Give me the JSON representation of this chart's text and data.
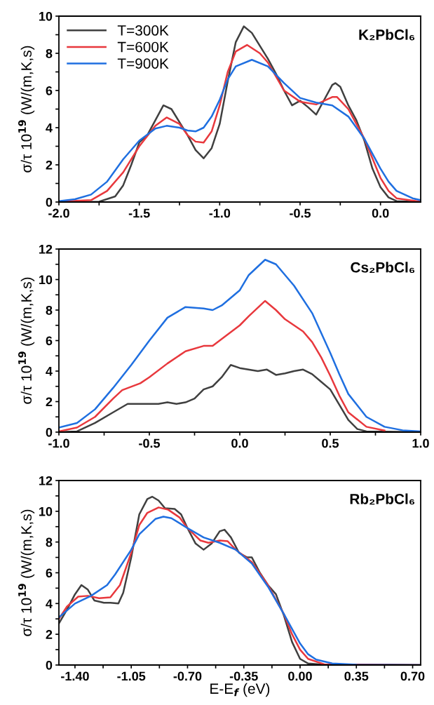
{
  "chart_data": [
    {
      "type": "line",
      "ylabel": "σ/τ 10$^{19}$ (W/(m,K,s)",
      "annotations": [
        "K₂PbCl₆"
      ],
      "legend": "top left",
      "xlim": [
        -2.0,
        0.25
      ],
      "xticks": [
        {
          "value": -2.0,
          "label": "-2.0"
        },
        {
          "value": -1.75,
          "label": null
        },
        {
          "value": -1.5,
          "label": "-1.5"
        },
        {
          "value": -1.25,
          "label": null
        },
        {
          "value": -1.0,
          "label": "-1.0"
        },
        {
          "value": -0.75,
          "label": null
        },
        {
          "value": -0.5,
          "label": "-0.5"
        },
        {
          "value": -0.25,
          "label": null
        },
        {
          "value": 0.0,
          "label": "0.0"
        }
      ],
      "ylim": [
        0,
        10
      ],
      "yticks": [
        0,
        {
          "value": 1,
          "label": null
        },
        2,
        {
          "value": 3,
          "label": null
        },
        4,
        {
          "value": 5,
          "label": null
        },
        6,
        {
          "value": 7,
          "label": null
        },
        8,
        {
          "value": 9,
          "label": null
        },
        10
      ],
      "series": [
        {
          "name": "T=300K",
          "color": "#404040",
          "x": [
            -2.0,
            -1.75,
            -1.65,
            -1.6,
            -1.55,
            -1.5,
            -1.45,
            -1.4,
            -1.35,
            -1.3,
            -1.25,
            -1.2,
            -1.15,
            -1.1,
            -1.05,
            -1.0,
            -0.95,
            -0.9,
            -0.85,
            -0.8,
            -0.75,
            -0.7,
            -0.65,
            -0.6,
            -0.55,
            -0.5,
            -0.45,
            -0.4,
            -0.35,
            -0.3,
            -0.28,
            -0.25,
            -0.2,
            -0.15,
            -0.1,
            -0.05,
            0.0,
            0.05,
            0.1,
            0.25
          ],
          "values": [
            0,
            0.02,
            0.3,
            0.9,
            2.0,
            3.2,
            3.6,
            4.4,
            5.2,
            5.0,
            4.3,
            3.6,
            2.8,
            2.35,
            2.9,
            4.2,
            6.5,
            8.6,
            9.45,
            9.1,
            8.4,
            7.7,
            6.9,
            6.0,
            5.2,
            5.45,
            5.1,
            4.7,
            5.5,
            6.3,
            6.4,
            6.2,
            5.2,
            4.4,
            3.3,
            1.8,
            0.8,
            0.25,
            0.05,
            0.0
          ]
        },
        {
          "name": "T=600K",
          "color": "#e8383d",
          "x": [
            -2.0,
            -1.8,
            -1.7,
            -1.6,
            -1.5,
            -1.4,
            -1.33,
            -1.25,
            -1.2,
            -1.15,
            -1.1,
            -1.05,
            -1.0,
            -0.95,
            -0.9,
            -0.83,
            -0.75,
            -0.7,
            -0.6,
            -0.5,
            -0.4,
            -0.3,
            -0.27,
            -0.2,
            -0.1,
            0.0,
            0.05,
            0.1,
            0.25
          ],
          "values": [
            0.02,
            0.1,
            0.6,
            1.6,
            3.0,
            4.1,
            4.55,
            4.2,
            3.6,
            3.25,
            3.2,
            3.8,
            5.2,
            7.0,
            8.1,
            8.45,
            8.0,
            7.5,
            6.0,
            5.4,
            5.25,
            5.65,
            5.65,
            5.0,
            3.4,
            1.3,
            0.6,
            0.2,
            0.02
          ]
        },
        {
          "name": "T=900K",
          "color": "#1f6fe0",
          "x": [
            -2.0,
            -1.9,
            -1.8,
            -1.7,
            -1.6,
            -1.5,
            -1.4,
            -1.33,
            -1.25,
            -1.2,
            -1.15,
            -1.1,
            -1.05,
            -1.0,
            -0.95,
            -0.9,
            -0.8,
            -0.7,
            -0.6,
            -0.5,
            -0.4,
            -0.3,
            -0.2,
            -0.1,
            0.0,
            0.05,
            0.1,
            0.2,
            0.25
          ],
          "values": [
            0.05,
            0.15,
            0.4,
            1.1,
            2.3,
            3.3,
            3.95,
            4.1,
            4.0,
            3.85,
            3.8,
            4.0,
            4.6,
            5.5,
            6.6,
            7.3,
            7.65,
            7.3,
            6.4,
            5.6,
            5.35,
            5.2,
            4.6,
            3.4,
            1.8,
            1.1,
            0.6,
            0.2,
            0.1
          ]
        }
      ]
    },
    {
      "type": "line",
      "ylabel": "σ/τ 10$^{19}$ (W/(m,K,s)",
      "annotations": [
        "Cs₂PbCl₆"
      ],
      "xlim": [
        -1.0,
        1.0
      ],
      "xticks": [
        {
          "value": -1.0,
          "label": "-1.0"
        },
        {
          "value": -0.75,
          "label": null
        },
        {
          "value": -0.5,
          "label": "-0.5"
        },
        {
          "value": -0.25,
          "label": null
        },
        {
          "value": 0.0,
          "label": "0.0"
        },
        {
          "value": 0.25,
          "label": null
        },
        {
          "value": 0.5,
          "label": "0.5"
        },
        {
          "value": 0.75,
          "label": null
        },
        {
          "value": 1.0,
          "label": "1.0"
        }
      ],
      "ylim": [
        0,
        12
      ],
      "yticks": [
        0,
        {
          "value": 1,
          "label": null
        },
        2,
        {
          "value": 3,
          "label": null
        },
        4,
        {
          "value": 5,
          "label": null
        },
        6,
        {
          "value": 7,
          "label": null
        },
        8,
        {
          "value": 9,
          "label": null
        },
        10,
        {
          "value": 11,
          "label": null
        },
        12
      ],
      "series": [
        {
          "color": "#404040",
          "x": [
            -1.0,
            -0.9,
            -0.8,
            -0.7,
            -0.62,
            -0.55,
            -0.45,
            -0.4,
            -0.35,
            -0.3,
            -0.25,
            -0.2,
            -0.15,
            -0.1,
            -0.05,
            0.0,
            0.1,
            0.15,
            0.2,
            0.25,
            0.3,
            0.35,
            0.4,
            0.45,
            0.5,
            0.55,
            0.6,
            0.65,
            0.7,
            1.0
          ],
          "values": [
            0,
            0.05,
            0.6,
            1.3,
            1.85,
            1.85,
            1.85,
            1.95,
            1.85,
            1.95,
            2.2,
            2.8,
            3.0,
            3.6,
            4.4,
            4.2,
            4.0,
            4.1,
            3.75,
            3.85,
            4.0,
            4.1,
            3.8,
            3.3,
            2.8,
            1.8,
            0.8,
            0.2,
            0.05,
            0
          ]
        },
        {
          "color": "#e8383d",
          "x": [
            -1.0,
            -0.9,
            -0.8,
            -0.7,
            -0.65,
            -0.55,
            -0.5,
            -0.4,
            -0.3,
            -0.2,
            -0.15,
            -0.1,
            0.0,
            0.05,
            0.14,
            0.2,
            0.25,
            0.35,
            0.4,
            0.45,
            0.5,
            0.55,
            0.6,
            0.7,
            0.8
          ],
          "values": [
            0.05,
            0.3,
            1.0,
            2.2,
            2.75,
            3.2,
            3.6,
            4.5,
            5.3,
            5.65,
            5.65,
            6.1,
            7.0,
            7.6,
            8.6,
            8.0,
            7.4,
            6.6,
            5.9,
            4.9,
            3.7,
            2.4,
            1.3,
            0.35,
            0.1
          ]
        },
        {
          "color": "#1f6fe0",
          "x": [
            -1.0,
            -0.9,
            -0.8,
            -0.7,
            -0.6,
            -0.5,
            -0.4,
            -0.3,
            -0.2,
            -0.15,
            -0.1,
            0.0,
            0.05,
            0.14,
            0.2,
            0.3,
            0.4,
            0.5,
            0.55,
            0.6,
            0.7,
            0.8,
            0.9,
            1.0
          ],
          "values": [
            0.3,
            0.6,
            1.5,
            2.9,
            4.4,
            6.0,
            7.5,
            8.2,
            8.1,
            8.0,
            8.3,
            9.3,
            10.3,
            11.3,
            11.0,
            9.6,
            7.8,
            5.2,
            3.8,
            2.5,
            1.0,
            0.35,
            0.12,
            0.05
          ]
        }
      ]
    },
    {
      "type": "line",
      "xlabel": "E-E$_{f}$ (eV)",
      "ylabel": "σ/τ 10$^{19}$ (W/(m,K,s)",
      "annotations": [
        "Rb₂PbCl₆"
      ],
      "xlim": [
        -1.5,
        0.75
      ],
      "xticks": [
        {
          "value": -1.4,
          "label": "-1.40"
        },
        {
          "value": -1.225,
          "label": null
        },
        {
          "value": -1.05,
          "label": "-1.05"
        },
        {
          "value": -0.875,
          "label": null
        },
        {
          "value": -0.7,
          "label": "-0.70"
        },
        {
          "value": -0.525,
          "label": null
        },
        {
          "value": -0.35,
          "label": "-0.35"
        },
        {
          "value": -0.175,
          "label": null
        },
        {
          "value": 0.0,
          "label": "0.00"
        },
        {
          "value": 0.175,
          "label": null
        },
        {
          "value": 0.35,
          "label": "0.35"
        },
        {
          "value": 0.525,
          "label": null
        },
        {
          "value": 0.7,
          "label": "0.70"
        }
      ],
      "ylim": [
        0,
        12
      ],
      "yticks": [
        0,
        {
          "value": 1,
          "label": null
        },
        2,
        {
          "value": 3,
          "label": null
        },
        4,
        {
          "value": 5,
          "label": null
        },
        6,
        {
          "value": 7,
          "label": null
        },
        8,
        {
          "value": 9,
          "label": null
        },
        10,
        {
          "value": 11,
          "label": null
        },
        12
      ],
      "series": [
        {
          "color": "#404040",
          "x": [
            -1.5,
            -1.45,
            -1.4,
            -1.36,
            -1.32,
            -1.28,
            -1.22,
            -1.18,
            -1.13,
            -1.1,
            -1.05,
            -1.0,
            -0.95,
            -0.92,
            -0.88,
            -0.84,
            -0.78,
            -0.74,
            -0.7,
            -0.65,
            -0.6,
            -0.55,
            -0.5,
            -0.47,
            -0.43,
            -0.38,
            -0.33,
            -0.3,
            -0.25,
            -0.2,
            -0.15,
            -0.1,
            -0.05,
            0.0,
            0.05,
            0.15,
            0.75
          ],
          "values": [
            2.7,
            3.6,
            4.6,
            5.2,
            4.9,
            4.2,
            4.05,
            4.05,
            4.0,
            4.7,
            7.0,
            9.8,
            10.8,
            10.95,
            10.7,
            10.2,
            10.15,
            9.8,
            8.9,
            7.9,
            7.5,
            7.9,
            8.7,
            8.8,
            8.3,
            7.3,
            7.0,
            7.0,
            6.0,
            5.2,
            4.6,
            3.2,
            1.5,
            0.4,
            0.1,
            0.02,
            0
          ]
        },
        {
          "color": "#e8383d",
          "x": [
            -1.5,
            -1.45,
            -1.38,
            -1.32,
            -1.25,
            -1.18,
            -1.12,
            -1.05,
            -1.0,
            -0.95,
            -0.88,
            -0.82,
            -0.75,
            -0.7,
            -0.62,
            -0.57,
            -0.5,
            -0.45,
            -0.4,
            -0.3,
            -0.2,
            -0.1,
            -0.05,
            0.0,
            0.05,
            0.15,
            0.75
          ],
          "values": [
            3.0,
            3.8,
            4.45,
            4.5,
            4.35,
            4.4,
            5.2,
            7.3,
            9.1,
            9.9,
            10.25,
            10.1,
            9.6,
            8.9,
            8.1,
            7.95,
            8.1,
            8.05,
            7.5,
            6.7,
            5.2,
            3.3,
            2.0,
            1.0,
            0.4,
            0.05,
            0
          ]
        },
        {
          "color": "#1f6fe0",
          "x": [
            -1.5,
            -1.4,
            -1.3,
            -1.2,
            -1.15,
            -1.05,
            -1.0,
            -0.9,
            -0.85,
            -0.8,
            -0.7,
            -0.6,
            -0.5,
            -0.4,
            -0.3,
            -0.2,
            -0.1,
            0.0,
            0.05,
            0.1,
            0.2,
            0.35,
            0.75
          ],
          "values": [
            3.1,
            4.0,
            4.5,
            5.2,
            5.9,
            7.5,
            8.5,
            9.5,
            9.65,
            9.55,
            8.9,
            8.3,
            7.95,
            7.5,
            6.6,
            5.1,
            3.3,
            1.4,
            0.7,
            0.35,
            0.1,
            0.02,
            0
          ]
        }
      ]
    }
  ]
}
